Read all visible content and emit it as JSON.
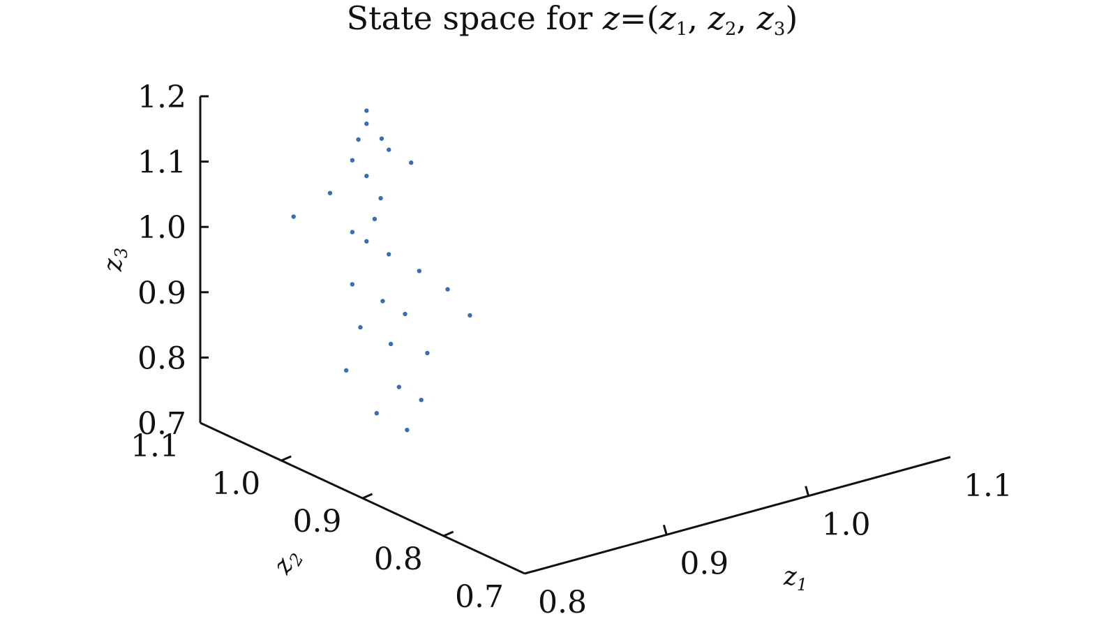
{
  "chart_data": {
    "type": "scatter",
    "projection": "3d",
    "title": "State space for z=(z1, z2, z3)",
    "title_parts": {
      "text": "State space for ",
      "var": "z",
      "eq": "=(",
      "v1": "z",
      "s1": "1",
      "sep1": ", ",
      "v2": "z",
      "s2": "2",
      "sep2": ", ",
      "v3": "z",
      "s3": "3",
      "close": ")"
    },
    "axes": {
      "x": {
        "label": "z1",
        "label_var": "z",
        "label_sub": "1",
        "range": [
          0.8,
          1.1
        ],
        "ticks": [
          "0.8",
          "0.9",
          "1.0",
          "1.1"
        ]
      },
      "y": {
        "label": "z2",
        "label_var": "z",
        "label_sub": "2",
        "range": [
          0.7,
          1.1
        ],
        "ticks": [
          "0.7",
          "0.8",
          "0.9",
          "1.0",
          "1.1"
        ]
      },
      "z": {
        "label": "z3",
        "label_var": "z",
        "label_sub": "3",
        "range": [
          0.7,
          1.2
        ],
        "ticks": [
          "0.7",
          "0.8",
          "0.9",
          "1.0",
          "1.1",
          "1.2"
        ]
      }
    },
    "grid": false,
    "marker_color": "#3a6eb0",
    "series": [
      {
        "points": [
          {
            "x": 0.86,
            "y": 1.0,
            "z": 1.2
          },
          {
            "x": 0.86,
            "y": 1.0,
            "z": 1.18
          },
          {
            "x": 0.865,
            "y": 0.99,
            "z": 1.16
          },
          {
            "x": 0.86,
            "y": 1.01,
            "z": 1.15
          },
          {
            "x": 0.87,
            "y": 0.99,
            "z": 1.14
          },
          {
            "x": 0.85,
            "y": 1.0,
            "z": 1.13
          },
          {
            "x": 0.88,
            "y": 0.98,
            "z": 1.12
          },
          {
            "x": 0.86,
            "y": 1.0,
            "z": 1.1
          },
          {
            "x": 0.84,
            "y": 1.01,
            "z": 1.08
          },
          {
            "x": 0.87,
            "y": 1.0,
            "z": 1.06
          },
          {
            "x": 0.86,
            "y": 0.99,
            "z": 1.04
          },
          {
            "x": 0.85,
            "y": 1.0,
            "z": 1.02
          },
          {
            "x": 0.86,
            "y": 1.0,
            "z": 1.0
          },
          {
            "x": 0.87,
            "y": 0.99,
            "z": 0.98
          },
          {
            "x": 0.88,
            "y": 0.97,
            "z": 0.96
          },
          {
            "x": 0.85,
            "y": 1.0,
            "z": 0.94
          },
          {
            "x": 0.86,
            "y": 0.98,
            "z": 0.92
          },
          {
            "x": 0.87,
            "y": 0.97,
            "z": 0.9
          },
          {
            "x": 0.85,
            "y": 0.99,
            "z": 0.88
          },
          {
            "x": 0.86,
            "y": 0.97,
            "z": 0.86
          },
          {
            "x": 0.88,
            "y": 0.96,
            "z": 0.84
          },
          {
            "x": 0.84,
            "y": 0.99,
            "z": 0.82
          },
          {
            "x": 0.86,
            "y": 0.96,
            "z": 0.8
          },
          {
            "x": 0.87,
            "y": 0.95,
            "z": 0.78
          },
          {
            "x": 0.85,
            "y": 0.97,
            "z": 0.76
          },
          {
            "x": 0.86,
            "y": 0.95,
            "z": 0.74
          },
          {
            "x": 0.9,
            "y": 0.97,
            "z": 0.92
          },
          {
            "x": 0.91,
            "y": 0.96,
            "z": 0.88
          },
          {
            "x": 0.82,
            "y": 1.02,
            "z": 1.05
          }
        ]
      }
    ]
  }
}
